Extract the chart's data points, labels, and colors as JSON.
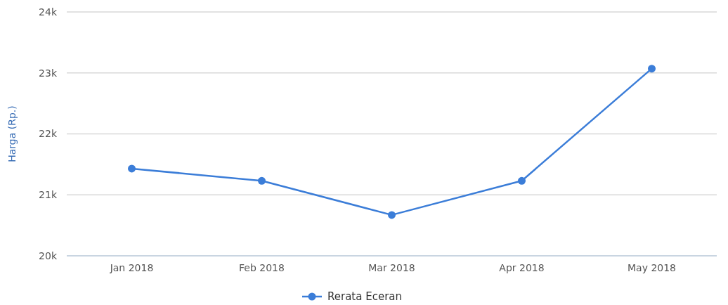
{
  "chart_data": {
    "type": "line",
    "ylabel": "Harga (Rp.)",
    "categories": [
      "Jan 2018",
      "Feb 2018",
      "Mar 2018",
      "Apr 2018",
      "May 2018"
    ],
    "series": [
      {
        "name": "Rerata Eceran",
        "color": "#3b7dd8",
        "values": [
          21430,
          21230,
          20670,
          21230,
          23070
        ]
      }
    ],
    "ylim": [
      20000,
      24000
    ],
    "yticks": [
      {
        "value": 20000,
        "label": "20k"
      },
      {
        "value": 21000,
        "label": "21k"
      },
      {
        "value": 22000,
        "label": "22k"
      },
      {
        "value": 23000,
        "label": "23k"
      },
      {
        "value": 24000,
        "label": "24k"
      }
    ],
    "grid": "y",
    "legend": "bottom",
    "marker": "circle",
    "line_style": "solid"
  }
}
